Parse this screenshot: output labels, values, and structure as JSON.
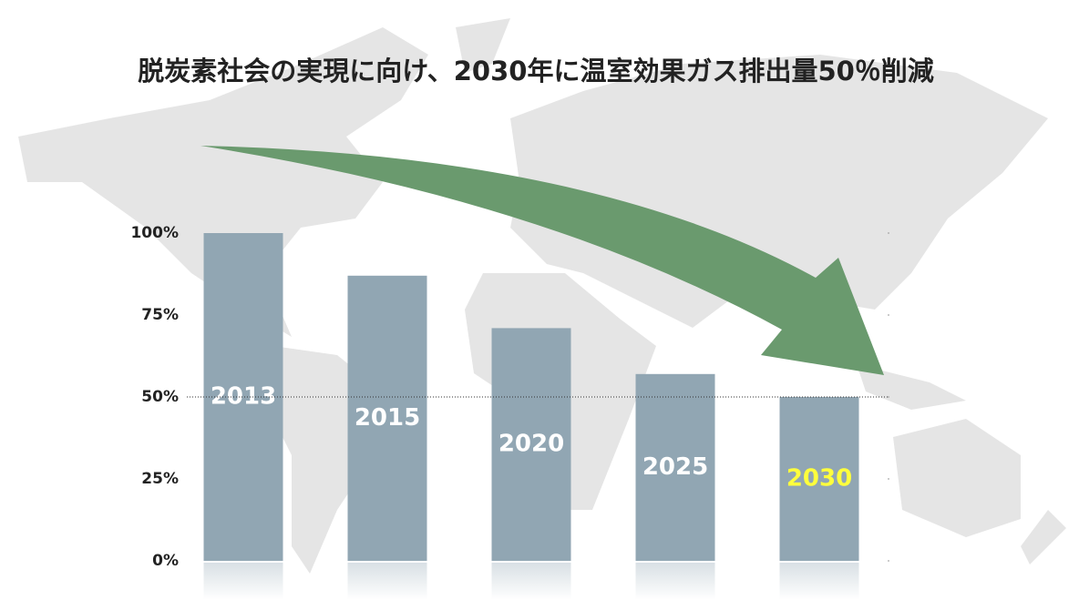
{
  "chart_data": {
    "type": "bar",
    "title": "脱炭素社会の実現に向け、2030年に温室効果ガス排出量50％削減",
    "categories": [
      "2013",
      "2015",
      "2020",
      "2025",
      "2030"
    ],
    "values": [
      100,
      87,
      71,
      57,
      50
    ],
    "color": "#91a6b3",
    "label_colors": [
      "#ffffff",
      "#ffffff",
      "#ffffff",
      "#ffffff",
      "#ffff3c"
    ],
    "ylim": [
      0,
      100
    ],
    "yticks": [
      {
        "value": 0,
        "label": "0%"
      },
      {
        "value": 25,
        "label": "25%"
      },
      {
        "value": 50,
        "label": "50%"
      },
      {
        "value": 75,
        "label": "75%"
      },
      {
        "value": 100,
        "label": "100%"
      }
    ],
    "reference_line": 50
  }
}
